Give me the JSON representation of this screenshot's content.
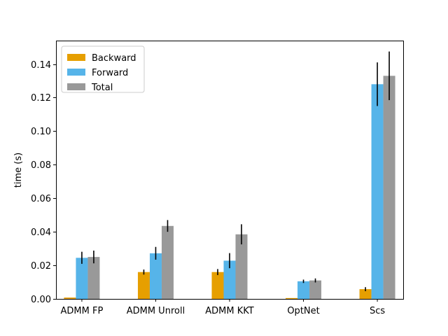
{
  "chart_data": {
    "type": "bar",
    "title": "",
    "xlabel": "",
    "ylabel": "time (s)",
    "ylim": [
      0,
      0.154
    ],
    "yticks": [
      "0.00",
      "0.02",
      "0.04",
      "0.06",
      "0.08",
      "0.10",
      "0.12",
      "0.14"
    ],
    "ytick_values": [
      0,
      0.02,
      0.04,
      0.06,
      0.08,
      0.1,
      0.12,
      0.14
    ],
    "categories": [
      "ADMM FP",
      "ADMM Unroll",
      "ADMM KKT",
      "OptNet",
      "Scs"
    ],
    "legend_position": "top-left",
    "grid": false,
    "series": [
      {
        "name": "Backward",
        "color": "#E69F00",
        "values": [
          0.0008,
          0.016,
          0.016,
          0.0005,
          0.0058
        ],
        "errors": [
          0.0,
          0.0015,
          0.0018,
          0.0,
          0.0012
        ]
      },
      {
        "name": "Forward",
        "color": "#56B4E9",
        "values": [
          0.0245,
          0.0272,
          0.0228,
          0.0105,
          0.128
        ],
        "errors": [
          0.0036,
          0.0038,
          0.0045,
          0.001,
          0.013
        ]
      },
      {
        "name": "Total",
        "color": "#999999",
        "values": [
          0.025,
          0.0435,
          0.0385,
          0.011,
          0.133
        ],
        "errors": [
          0.0038,
          0.0035,
          0.006,
          0.0012,
          0.0145
        ]
      }
    ]
  }
}
